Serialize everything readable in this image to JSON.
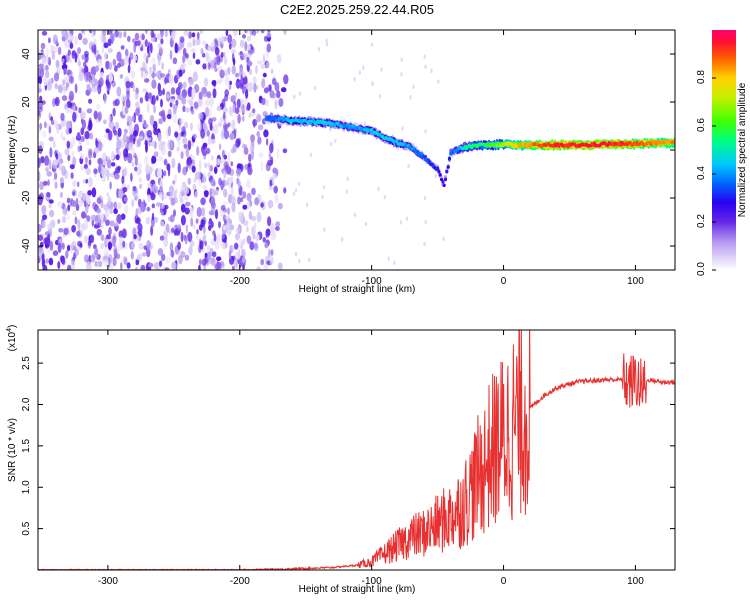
{
  "figure_title": "C2E2.2025.259.22.44.R05",
  "chart_data": [
    {
      "type": "heatmap",
      "panel": "top",
      "xlabel": "Height of straight line (km)",
      "ylabel": "Frequency (Hz)",
      "xlim": [
        -353,
        130
      ],
      "ylim": [
        -50,
        50
      ],
      "xticks": [
        -300,
        -200,
        -100,
        0,
        100
      ],
      "yticks": [
        -40,
        -20,
        0,
        20,
        40
      ],
      "colorbar": {
        "label": "Normalized spectral amplitude",
        "range": [
          0,
          1
        ],
        "ticks": [
          0.0,
          0.2,
          0.4,
          0.6,
          0.8
        ],
        "colormap": [
          "#ffffff",
          "#d6c8f5",
          "#8a5ae8",
          "#2a00f0",
          "#00b4ff",
          "#00ff60",
          "#c8f000",
          "#ffd000",
          "#ff4000",
          "#ff0060"
        ]
      },
      "noise_region_x": [
        -353,
        -165
      ],
      "ridge": {
        "x": [
          -180,
          -170,
          -160,
          -150,
          -140,
          -130,
          -120,
          -110,
          -100,
          -90,
          -80,
          -70,
          -60,
          -50,
          -45,
          -40,
          -35,
          -30,
          -20,
          -10,
          0,
          10,
          20,
          40,
          60,
          80,
          100,
          120,
          130
        ],
        "freq": [
          13,
          13,
          12,
          12,
          11.5,
          11,
          10,
          9,
          8,
          5,
          3,
          1,
          -3,
          -8,
          -15,
          -1,
          0,
          1,
          2,
          2,
          2.5,
          2,
          2,
          2,
          2,
          2.5,
          2.5,
          3,
          3
        ],
        "amplitude": [
          0.35,
          0.4,
          0.45,
          0.45,
          0.45,
          0.45,
          0.4,
          0.4,
          0.45,
          0.45,
          0.45,
          0.4,
          0.35,
          0.3,
          0.25,
          0.35,
          0.4,
          0.5,
          0.55,
          0.6,
          0.7,
          0.8,
          0.85,
          0.95,
          0.95,
          0.95,
          0.9,
          0.85,
          0.85
        ]
      }
    },
    {
      "type": "line",
      "panel": "bottom",
      "xlabel": "Height of straight line (km)",
      "ylabel": "SNR (10 * v/v)",
      "scale_label": "(x10",
      "scale_exponent": "4",
      "scale_label_close": ")",
      "xlim": [
        -353,
        130
      ],
      "ylim": [
        0,
        2.9
      ],
      "xticks": [
        -300,
        -200,
        -100,
        0,
        100
      ],
      "yticks": [
        0.5,
        1.0,
        1.5,
        2.0,
        2.5
      ],
      "color": "#e83030",
      "series": [
        {
          "x": [
            -353,
            -300,
            -250,
            -200,
            -170,
            -150,
            -130,
            -110,
            -100,
            -90,
            -80,
            -70,
            -60,
            -50,
            -40,
            -30,
            -20,
            -10,
            0,
            10,
            20,
            30,
            40,
            50,
            60,
            70,
            80,
            90,
            95,
            100,
            105,
            110,
            120,
            130
          ],
          "y": [
            0.0,
            0.0,
            0.0,
            0.0,
            0.01,
            0.02,
            0.03,
            0.06,
            0.1,
            0.2,
            0.3,
            0.4,
            0.45,
            0.55,
            0.65,
            0.8,
            1.1,
            1.4,
            1.6,
            1.8,
            1.95,
            2.1,
            2.2,
            2.25,
            2.28,
            2.29,
            2.3,
            2.3,
            2.25,
            2.3,
            2.2,
            2.3,
            2.27,
            2.27
          ]
        }
      ]
    }
  ]
}
